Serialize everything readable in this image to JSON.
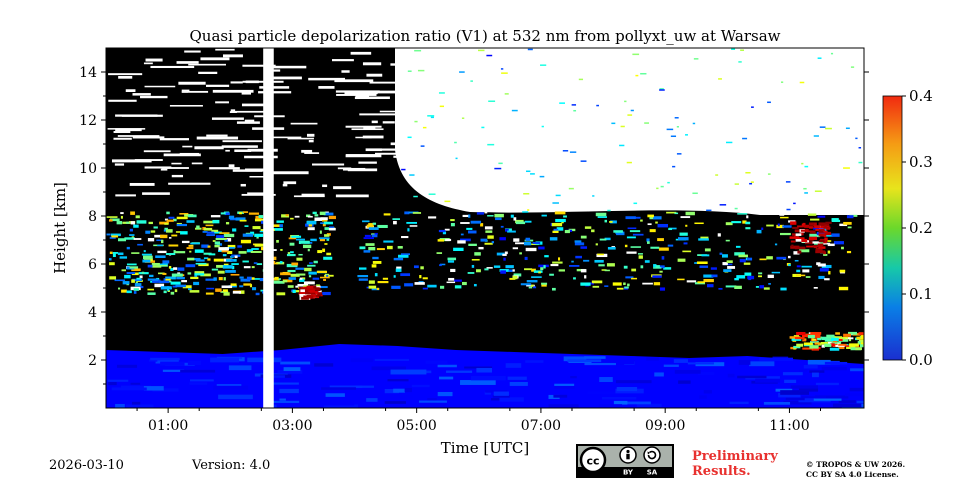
{
  "chart_data": {
    "type": "heatmap",
    "title": "Quasi particle depolarization ratio (V1) at 532 nm from pollyxt_uw at Warsaw",
    "xlabel": "Time [UTC]",
    "ylabel": "Height [km]",
    "x_ticks": [
      "01:00",
      "03:00",
      "05:00",
      "07:00",
      "09:00",
      "11:00"
    ],
    "x_range_hours": [
      0.0,
      12.2
    ],
    "y_ticks": [
      2,
      4,
      6,
      8,
      10,
      12,
      14
    ],
    "ylim": [
      0,
      15
    ],
    "colorbar": {
      "min": 0.0,
      "max": 0.4,
      "ticks": [
        "0.0",
        "0.1",
        "0.2",
        "0.3",
        "0.4"
      ],
      "colormap": "jet"
    },
    "data_gap_hours": [
      2.53,
      2.7
    ],
    "regions": [
      {
        "name": "boundary layer",
        "x_hours": [
          0.0,
          12.2
        ],
        "height_km": [
          0.0,
          2.4
        ],
        "value": 0.03
      },
      {
        "name": "aerosol layer",
        "x_hours": [
          0.0,
          3.6
        ],
        "height_km": [
          4.8,
          8.2
        ],
        "value": 0.18
      },
      {
        "name": "aerosol layer",
        "x_hours": [
          4.0,
          12.0
        ],
        "height_km": [
          5.0,
          8.2
        ],
        "value": 0.16
      },
      {
        "name": "high depol patch",
        "x_hours": [
          3.1,
          3.35
        ],
        "height_km": [
          4.6,
          5.1
        ],
        "value": 0.38
      },
      {
        "name": "high depol patch",
        "x_hours": [
          11.0,
          11.6
        ],
        "height_km": [
          6.5,
          7.8
        ],
        "value": 0.38
      },
      {
        "name": "elevated layer",
        "x_hours": [
          11.0,
          12.2
        ],
        "height_km": [
          2.5,
          3.2
        ],
        "value": 0.25
      }
    ]
  },
  "footer": {
    "date": "2026-03-10",
    "version": "Version: 4.0",
    "license_badge": {
      "by": "BY",
      "sa": "SA"
    },
    "preliminary": [
      "Preliminary",
      "Results."
    ],
    "copyright": [
      "© TROPOS & UW 2026.",
      "CC BY SA 4.0 License."
    ]
  },
  "colors": {
    "no_signal": "#000000",
    "missing": "#ffffff",
    "text": "#000000",
    "preliminary": "#e8312f"
  }
}
